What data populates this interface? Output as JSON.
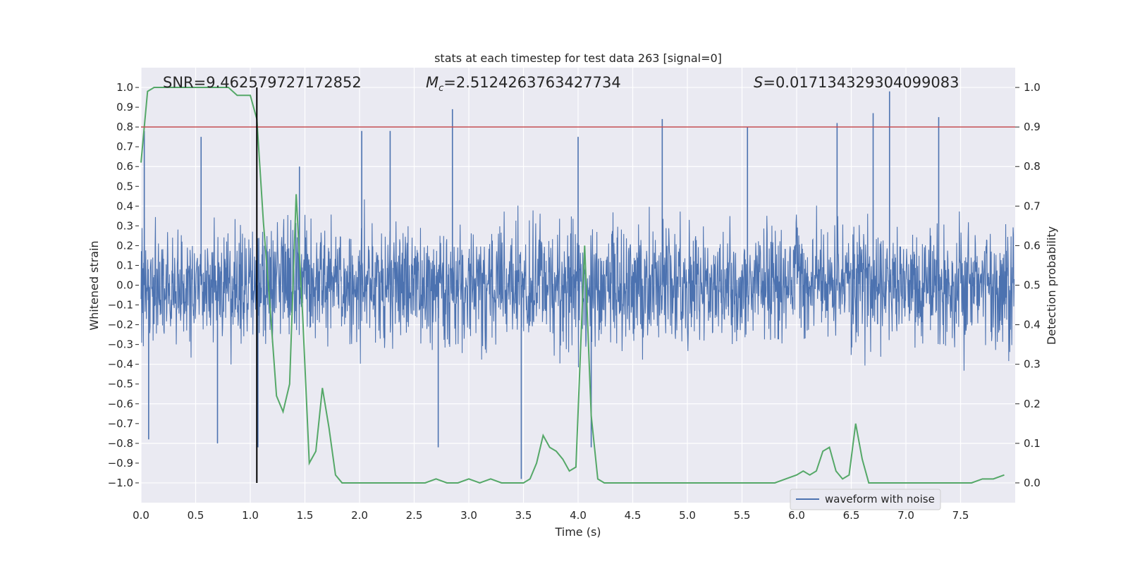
{
  "chart_data": {
    "type": "line",
    "title": "stats at each timestep for test data 263 [signal=0]",
    "xlabel": "Time (s)",
    "ylabel": "Whitened strain",
    "y2label": "Detection probability",
    "xlim": [
      0,
      8
    ],
    "ylim": [
      -1.1,
      1.1
    ],
    "y2lim": [
      -0.05,
      1.05
    ],
    "xticks": [
      "0.0",
      "0.5",
      "1.0",
      "1.5",
      "2.0",
      "2.5",
      "3.0",
      "3.5",
      "4.0",
      "4.5",
      "5.0",
      "5.5",
      "6.0",
      "6.5",
      "7.0",
      "7.5"
    ],
    "yticks": [
      "1.0",
      "0.9",
      "0.8",
      "0.7",
      "0.6",
      "0.5",
      "0.4",
      "0.3",
      "0.2",
      "0.1",
      "0.0",
      "-0.1",
      "-0.2",
      "-0.3",
      "-0.4",
      "-0.5",
      "-0.6",
      "-0.7",
      "-0.8",
      "-0.9",
      "-1.0"
    ],
    "y2ticks": [
      "1.0",
      "0.9",
      "0.8",
      "0.7",
      "0.6",
      "0.5",
      "0.4",
      "0.3",
      "0.2",
      "0.1",
      "0.0"
    ],
    "grid": true,
    "legend_position": "bottom-right",
    "annotations": {
      "snr": "SNR=9.462579727172852",
      "mc_symbol": "M",
      "mc_sub": "c",
      "mc_value": "=2.5124263763427734",
      "s_symbol": "S",
      "s_value": "=0.017134329304099083"
    },
    "marker_time": 1.06,
    "threshold_probability": 0.9,
    "series": [
      {
        "name": "waveform with noise",
        "color": "#4c72b0",
        "axis": "left",
        "description_samples": "dense whitened-strain noise, envelope about ±0.4 with spikes to ±0.9",
        "peaks": [
          {
            "x": 0.03,
            "y": 0.78
          },
          {
            "x": 0.07,
            "y": -0.78
          },
          {
            "x": 0.55,
            "y": 0.75
          },
          {
            "x": 0.7,
            "y": -0.8
          },
          {
            "x": 1.07,
            "y": -0.82
          },
          {
            "x": 1.45,
            "y": 0.6
          },
          {
            "x": 2.02,
            "y": 0.78
          },
          {
            "x": 2.28,
            "y": 0.78
          },
          {
            "x": 2.72,
            "y": -0.82
          },
          {
            "x": 2.85,
            "y": 0.89
          },
          {
            "x": 3.48,
            "y": -0.98
          },
          {
            "x": 4.0,
            "y": 0.75
          },
          {
            "x": 4.12,
            "y": -0.82
          },
          {
            "x": 4.77,
            "y": 0.84
          },
          {
            "x": 5.55,
            "y": 0.8
          },
          {
            "x": 6.37,
            "y": 0.82
          },
          {
            "x": 6.7,
            "y": 0.87
          },
          {
            "x": 6.85,
            "y": 0.98
          },
          {
            "x": 7.3,
            "y": 0.85
          }
        ]
      },
      {
        "name": "",
        "color": "#55a868",
        "axis": "right",
        "x": [
          0.0,
          0.06,
          0.12,
          0.5,
          0.8,
          0.88,
          0.95,
          1.0,
          1.06,
          1.12,
          1.18,
          1.24,
          1.3,
          1.36,
          1.42,
          1.48,
          1.54,
          1.6,
          1.66,
          1.72,
          1.78,
          1.84,
          1.9,
          2.0,
          2.1,
          2.2,
          2.3,
          2.4,
          2.5,
          2.6,
          2.7,
          2.8,
          2.9,
          3.0,
          3.1,
          3.2,
          3.3,
          3.4,
          3.5,
          3.56,
          3.62,
          3.68,
          3.74,
          3.8,
          3.86,
          3.92,
          3.98,
          4.06,
          4.12,
          4.18,
          4.24,
          4.3,
          4.4,
          4.5,
          5.0,
          5.5,
          5.8,
          5.9,
          6.0,
          6.06,
          6.12,
          6.18,
          6.24,
          6.3,
          6.36,
          6.42,
          6.48,
          6.54,
          6.6,
          6.66,
          6.72,
          6.78,
          6.9,
          7.0,
          7.2,
          7.4,
          7.6,
          7.7,
          7.8,
          7.9
        ],
        "values": [
          0.81,
          0.99,
          1.0,
          1.0,
          1.0,
          0.98,
          0.98,
          0.98,
          0.92,
          0.66,
          0.45,
          0.22,
          0.18,
          0.25,
          0.73,
          0.42,
          0.05,
          0.08,
          0.24,
          0.14,
          0.02,
          0.0,
          0.0,
          0.0,
          0.0,
          0.0,
          0.0,
          0.0,
          0.0,
          0.0,
          0.01,
          0.0,
          0.0,
          0.01,
          0.0,
          0.01,
          0.0,
          0.0,
          0.0,
          0.01,
          0.05,
          0.12,
          0.09,
          0.08,
          0.06,
          0.03,
          0.04,
          0.6,
          0.17,
          0.01,
          0.0,
          0.0,
          0.0,
          0.0,
          0.0,
          0.0,
          0.0,
          0.01,
          0.02,
          0.03,
          0.02,
          0.03,
          0.08,
          0.09,
          0.03,
          0.01,
          0.02,
          0.15,
          0.06,
          0.0,
          0.0,
          0.0,
          0.0,
          0.0,
          0.0,
          0.0,
          0.0,
          0.01,
          0.01,
          0.02
        ]
      },
      {
        "name": "",
        "color": "#c44e52",
        "axis": "right",
        "x": [
          0,
          8
        ],
        "values": [
          0.9,
          0.9
        ]
      }
    ]
  }
}
